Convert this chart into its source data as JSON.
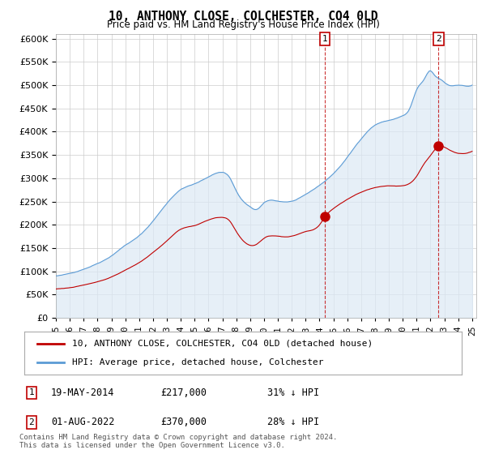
{
  "title": "10, ANTHONY CLOSE, COLCHESTER, CO4 0LD",
  "subtitle": "Price paid vs. HM Land Registry's House Price Index (HPI)",
  "hpi_color": "#5b9bd5",
  "hpi_fill_color": "#dce9f5",
  "price_color": "#c00000",
  "ylim_max": 600000,
  "yticks": [
    0,
    50000,
    100000,
    150000,
    200000,
    250000,
    300000,
    350000,
    400000,
    450000,
    500000,
    550000,
    600000
  ],
  "legend_label_price": "10, ANTHONY CLOSE, COLCHESTER, CO4 0LD (detached house)",
  "legend_label_hpi": "HPI: Average price, detached house, Colchester",
  "transaction1_label": "1",
  "transaction1_date": "19-MAY-2014",
  "transaction1_price": "£217,000",
  "transaction1_hpi": "31% ↓ HPI",
  "transaction2_label": "2",
  "transaction2_date": "01-AUG-2022",
  "transaction2_price": "£370,000",
  "transaction2_hpi": "28% ↓ HPI",
  "footer": "Contains HM Land Registry data © Crown copyright and database right 2024.\nThis data is licensed under the Open Government Licence v3.0.",
  "marker1_year": 2014.38,
  "marker1_price": 217000,
  "marker2_year": 2022.58,
  "marker2_price": 370000,
  "background_color": "#ffffff",
  "grid_color": "#cccccc",
  "xstart": 1995,
  "xend": 2025
}
